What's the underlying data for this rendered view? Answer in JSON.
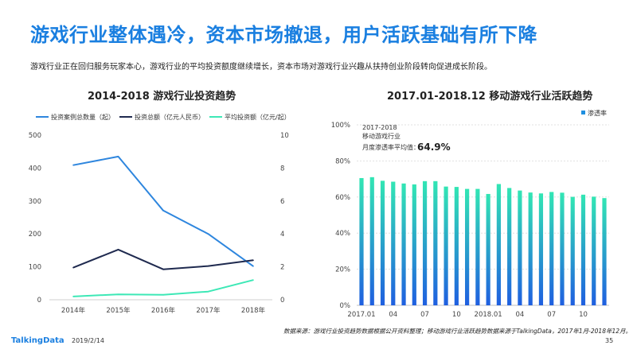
{
  "header": {
    "title": "游戏行业整体遇冷，资本市场撤退，用户活跃基础有所下降",
    "subtitle": "游戏行业正在回归服务玩家本心，游戏行业的平均投资额度继续增长，资本市场对游戏行业兴趣从扶持创业阶段转向促进成长阶段。"
  },
  "footer": {
    "source": "数据来源：游戏行业投资趋势数据根据公开资料整理；移动游戏行业活跃趋势数据来源于TalkingData，2017年1月-2018年12月。",
    "brand": "TalkingData",
    "date": "2019/2/14",
    "page": "35"
  },
  "chart_data": [
    {
      "type": "line",
      "title": "2014-2018  游戏行业投资趋势",
      "categories": [
        "2014年",
        "2015年",
        "2016年",
        "2017年",
        "2018年"
      ],
      "ylim_left": [
        0,
        500
      ],
      "ylim_right": [
        0,
        10
      ],
      "yticks_left": [
        "0",
        "100",
        "200",
        "300",
        "400",
        "500"
      ],
      "yticks_right": [
        "0",
        "2",
        "4",
        "6",
        "8",
        "10"
      ],
      "grid": false,
      "legend_position": "top",
      "series": [
        {
          "name": "投资案例总数量（起）",
          "axis": "left",
          "color": "#2e86de",
          "values": [
            409,
            435,
            271,
            200,
            102
          ]
        },
        {
          "name": "投资总额（亿元人民币）",
          "axis": "right",
          "color": "#1f2a4f",
          "values": [
            1.95,
            3.05,
            1.85,
            2.05,
            2.4
          ]
        },
        {
          "name": "平均投资额（亿元/起）",
          "axis": "right",
          "color": "#3de8b6",
          "values": [
            0.2,
            0.33,
            0.3,
            0.5,
            1.2
          ]
        }
      ]
    },
    {
      "type": "bar",
      "title": "2017.01-2018.12  移动游戏行业活跃趋势",
      "legend": "渗透率",
      "legend_position": "top-right",
      "ylim": [
        0,
        100
      ],
      "yticks": [
        "0%",
        "20%",
        "40%",
        "60%",
        "80%",
        "100%"
      ],
      "xtick_labels": [
        "2017.01",
        "04",
        "07",
        "10",
        "2018.01",
        "04",
        "07",
        "10"
      ],
      "categories": [
        "2017.01",
        "2017.02",
        "2017.03",
        "2017.04",
        "2017.05",
        "2017.06",
        "2017.07",
        "2017.08",
        "2017.09",
        "2017.10",
        "2017.11",
        "2017.12",
        "2018.01",
        "2018.02",
        "2018.03",
        "2018.04",
        "2018.05",
        "2018.06",
        "2018.07",
        "2018.08",
        "2018.09",
        "2018.10",
        "2018.11",
        "2018.12"
      ],
      "values": [
        70.5,
        71,
        69,
        68.5,
        67.5,
        67,
        68.8,
        68.8,
        65.8,
        65.6,
        64.5,
        64.5,
        61.7,
        67.2,
        65,
        63.6,
        62.5,
        62,
        62.8,
        62.4,
        60.1,
        61.3,
        60.2,
        59.4
      ],
      "annotation": {
        "line1": "2017-2018",
        "line2": "移动游戏行业",
        "line3": "月度渗透率平均值：",
        "value": "64.9%"
      },
      "colors": {
        "top": "#32e6b4",
        "bottom": "#1f5fe0"
      }
    }
  ]
}
